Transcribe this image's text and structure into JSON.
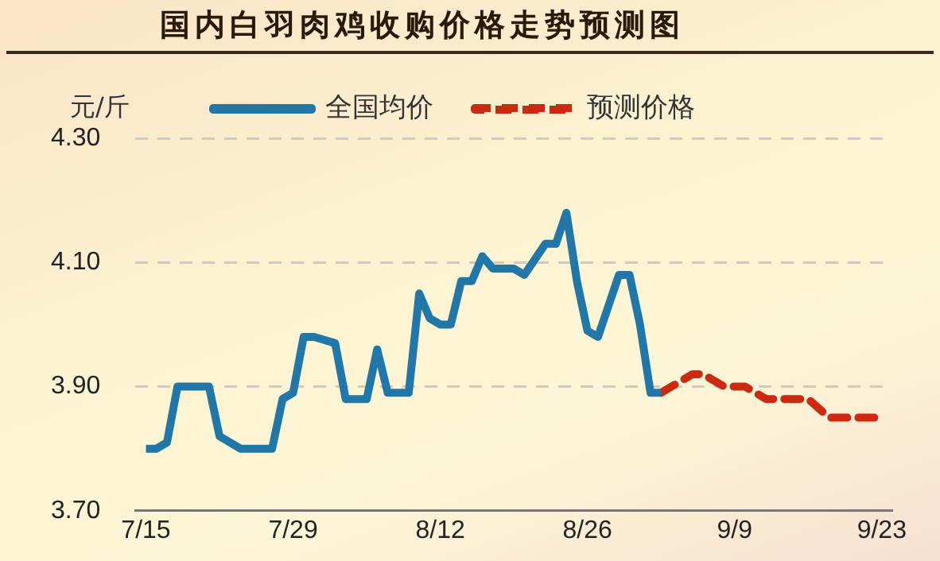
{
  "chart_data": {
    "type": "line",
    "title": "国内白羽肉鸡收购价格走势预测图",
    "ylabel": "元/斤",
    "series": [
      {
        "name": "全国均价",
        "color": "#2178a8",
        "line_style": "solid",
        "x": [
          "--07-15",
          "--07-16",
          "--07-17",
          "--07-18",
          "--07-21",
          "--07-22",
          "--07-24",
          "--07-27",
          "--07-28",
          "--07-29",
          "--07-30",
          "--07-31",
          "--08-02",
          "--08-03",
          "--08-05",
          "--08-06",
          "--08-07",
          "--08-09",
          "--08-10",
          "--08-11",
          "--08-12",
          "--08-13",
          "--08-14",
          "--08-15",
          "--08-16",
          "--08-17",
          "--08-19",
          "--08-20",
          "--08-22",
          "--08-23",
          "--08-24",
          "--08-25",
          "--08-26",
          "--08-27",
          "--08-29",
          "--08-30",
          "--08-31",
          "--09-01",
          "--09-02"
        ],
        "values": [
          3.8,
          3.8,
          3.81,
          3.9,
          3.9,
          3.82,
          3.8,
          3.8,
          3.88,
          3.89,
          3.98,
          3.98,
          3.97,
          3.88,
          3.88,
          3.96,
          3.89,
          3.89,
          4.05,
          4.01,
          4.0,
          4.0,
          4.07,
          4.07,
          4.11,
          4.09,
          4.09,
          4.08,
          4.13,
          4.13,
          4.18,
          4.07,
          3.99,
          3.98,
          4.08,
          4.08,
          4.0,
          3.89,
          3.89
        ]
      },
      {
        "name": "预测价格",
        "color": "#cc2a10",
        "line_style": "dashed",
        "x": [
          "--09-02",
          "--09-03",
          "--09-05",
          "--09-06",
          "--09-08",
          "--09-10",
          "--09-12",
          "--09-15",
          "--09-16",
          "--09-18",
          "--09-23"
        ],
        "values": [
          3.89,
          3.9,
          3.92,
          3.92,
          3.9,
          3.9,
          3.88,
          3.88,
          3.88,
          3.85,
          3.85
        ]
      }
    ],
    "xlim": [
      "--07-14",
      "--09-24"
    ],
    "xticks": [
      {
        "value": "--07-15",
        "label": "7/15"
      },
      {
        "value": "--07-29",
        "label": "7/29"
      },
      {
        "value": "--08-12",
        "label": "8/12"
      },
      {
        "value": "--08-26",
        "label": "8/26"
      },
      {
        "value": "--09-09",
        "label": "9/9"
      },
      {
        "value": "--09-23",
        "label": "9/23"
      }
    ],
    "ylim": [
      3.7,
      4.3
    ],
    "yticks": [
      {
        "value": 3.7,
        "label": "3.70"
      },
      {
        "value": 3.9,
        "label": "3.90"
      },
      {
        "value": 4.1,
        "label": "4.10"
      },
      {
        "value": 4.3,
        "label": "4.30"
      }
    ],
    "grid": "y",
    "legend": "top",
    "marker": "none"
  }
}
